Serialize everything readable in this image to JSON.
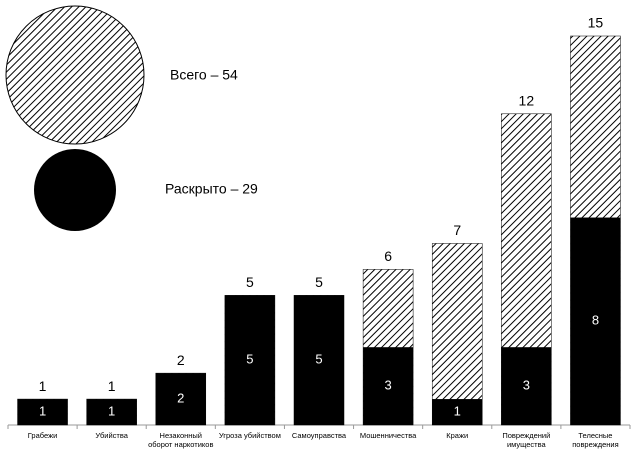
{
  "chart_data": {
    "type": "bar",
    "categories": [
      "Грабежи",
      "Убийства",
      "Незаконный оборот наркотиков",
      "Угроза убийством",
      "Самоуправства",
      "Мошенничества",
      "Кражи",
      "Повреждений имущества",
      "Телесные повреждения"
    ],
    "series": [
      {
        "name": "Всего – 54",
        "color": "#000000",
        "values": [
          1,
          1,
          2,
          5,
          5,
          6,
          7,
          12,
          15
        ]
      },
      {
        "name": "Раскрыто – 29",
        "color": "#000000",
        "values": [
          1,
          1,
          2,
          5,
          5,
          3,
          1,
          3,
          8
        ]
      }
    ]
  }
}
